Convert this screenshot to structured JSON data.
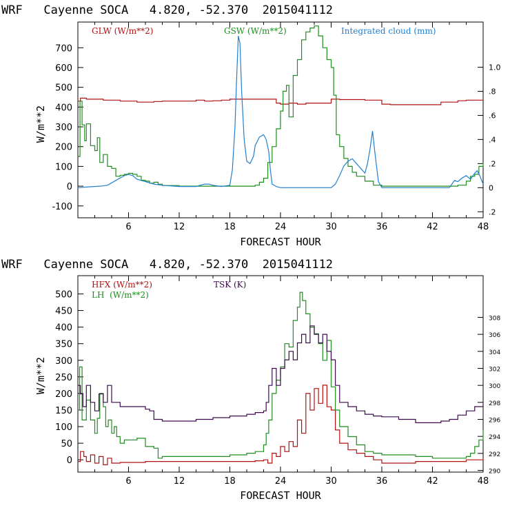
{
  "chart_data": [
    {
      "type": "line",
      "title": "WRF   Cayenne SOCA   4.820, -52.370  2015041112",
      "xlabel": "FORECAST HOUR",
      "ylabel": "W/m**2",
      "xlim": [
        0,
        48
      ],
      "ylim": [
        -160,
        830
      ],
      "y2lim": [
        -0.25,
        1.375
      ],
      "x_ticks": [
        6,
        12,
        18,
        24,
        30,
        36,
        42,
        48
      ],
      "y_ticks": [
        -100,
        0,
        100,
        200,
        300,
        400,
        500,
        600,
        700
      ],
      "y2_ticks": [
        -0.2,
        0,
        0.2,
        0.4,
        0.6,
        0.8,
        1.0
      ],
      "y2_tick_labels": [
        ".2",
        "0",
        ".2",
        ".4",
        ".6",
        ".8",
        "1.0"
      ],
      "legend": [
        {
          "label": "GLW (W/m**2)",
          "color": "#b01010"
        },
        {
          "label": "GSW (W/m**2)",
          "color": "#1e8c1e"
        },
        {
          "label": "Integrated cloud (mm)",
          "color": "#1f7fd0"
        }
      ],
      "series": [
        {
          "name": "GLW",
          "axis": "left",
          "color": "#b01010",
          "step": true,
          "x": [
            0,
            0.3,
            1,
            2,
            3,
            4,
            5,
            6,
            7,
            8,
            9,
            10,
            11,
            12,
            13,
            14,
            15,
            16,
            17,
            18,
            19,
            20,
            21,
            22,
            23,
            23.5,
            24,
            25,
            26,
            27,
            28,
            29,
            30,
            31,
            32,
            33,
            34,
            35,
            36,
            37,
            38,
            39,
            40,
            41,
            42,
            43,
            44,
            45,
            46,
            47,
            48
          ],
          "y": [
            430,
            445,
            440,
            440,
            435,
            435,
            430,
            430,
            425,
            425,
            428,
            430,
            430,
            430,
            430,
            435,
            430,
            432,
            435,
            440,
            440,
            440,
            440,
            440,
            440,
            420,
            415,
            420,
            415,
            420,
            420,
            420,
            440,
            438,
            438,
            438,
            435,
            435,
            415,
            412,
            412,
            412,
            412,
            412,
            412,
            425,
            425,
            432,
            435,
            435,
            435
          ]
        },
        {
          "name": "GSW",
          "axis": "left",
          "color": "#1e8c1e",
          "step": true,
          "x": [
            0,
            0.25,
            0.5,
            0.8,
            1,
            1.5,
            2,
            2.3,
            2.6,
            3,
            3.5,
            4,
            4.5,
            5,
            5.5,
            6,
            6.5,
            7,
            7.5,
            8,
            8.5,
            9,
            9.5,
            10,
            12,
            15,
            18,
            19,
            20,
            21,
            21.5,
            22,
            22.5,
            23,
            23.5,
            24,
            24.3,
            24.7,
            25,
            25.5,
            26,
            26.5,
            27,
            27.5,
            28,
            28.5,
            29,
            29.5,
            30,
            30.3,
            30.6,
            31,
            31.5,
            32,
            32.5,
            33,
            34,
            35,
            36,
            40,
            44,
            45,
            46,
            46.5,
            47,
            47.5,
            48
          ],
          "y": [
            150,
            430,
            310,
            230,
            315,
            205,
            180,
            245,
            120,
            160,
            100,
            90,
            50,
            55,
            60,
            65,
            60,
            50,
            30,
            25,
            15,
            20,
            10,
            3,
            0,
            0,
            0,
            0,
            0,
            5,
            20,
            40,
            120,
            200,
            290,
            380,
            480,
            510,
            350,
            560,
            640,
            740,
            780,
            800,
            810,
            760,
            700,
            640,
            600,
            460,
            260,
            200,
            140,
            100,
            70,
            50,
            25,
            5,
            0,
            0,
            0,
            5,
            25,
            50,
            60,
            100,
            120
          ]
        },
        {
          "name": "Integrated cloud",
          "axis": "right",
          "color": "#1f7fd0",
          "step": false,
          "x": [
            0,
            1,
            2,
            3,
            3.5,
            4,
            4.5,
            5,
            5.5,
            6,
            6.5,
            7,
            8,
            9,
            10,
            12,
            14,
            15,
            15.5,
            16,
            17,
            18,
            18.3,
            18.6,
            18.8,
            19,
            19.2,
            19.4,
            19.7,
            20,
            20.4,
            20.8,
            21,
            21.5,
            22,
            22.3,
            22.6,
            22.8,
            23,
            23.5,
            24,
            26,
            28,
            30,
            30.5,
            31,
            31.5,
            32,
            32.5,
            33,
            33.5,
            34,
            34.3,
            34.6,
            34.9,
            35.2,
            35.6,
            36,
            40,
            44,
            44.3,
            44.6,
            45,
            45.5,
            46,
            46.5,
            47,
            47.3,
            47.6,
            48
          ],
          "y": [
            0,
            0.005,
            0.01,
            0.015,
            0.02,
            0.04,
            0.06,
            0.08,
            0.1,
            0.11,
            0.1,
            0.07,
            0.05,
            0.03,
            0.02,
            0.01,
            0.01,
            0.03,
            0.03,
            0.02,
            0.01,
            0.02,
            0.15,
            0.5,
            0.9,
            1.26,
            1.2,
            0.8,
            0.4,
            0.22,
            0.2,
            0.26,
            0.35,
            0.42,
            0.44,
            0.4,
            0.3,
            0.15,
            0.03,
            0.01,
            0,
            0,
            0,
            0,
            0.03,
            0.1,
            0.18,
            0.22,
            0.24,
            0.2,
            0.16,
            0.12,
            0.2,
            0.32,
            0.47,
            0.28,
            0.05,
            0,
            0,
            0,
            0.03,
            0.06,
            0.05,
            0.08,
            0.1,
            0.07,
            0.12,
            0.14,
            0.1,
            0.03
          ]
        }
      ]
    },
    {
      "type": "line",
      "title": "WRF   Cayenne SOCA   4.820, -52.370  2015041112",
      "xlabel": "FORECAST HOUR",
      "ylabel": "W/m**2",
      "xlim": [
        0,
        48
      ],
      "ylim": [
        -37,
        555
      ],
      "y2lim": [
        289.8,
        312.9
      ],
      "x_ticks": [
        6,
        12,
        18,
        24,
        30,
        36,
        42,
        48
      ],
      "y_ticks": [
        0,
        50,
        100,
        150,
        200,
        250,
        300,
        350,
        400,
        450,
        500
      ],
      "y2_ticks": [
        290,
        292,
        294,
        296,
        298,
        300,
        302,
        304,
        306,
        308
      ],
      "legend": [
        {
          "label": "HFX (W/m**2)",
          "color": "#b01010"
        },
        {
          "label": "LH  (W/m**2)",
          "color": "#1e8c1e"
        },
        {
          "label": "TSK (K)",
          "color": "#3a0a4a"
        }
      ],
      "series": [
        {
          "name": "HFX",
          "axis": "left",
          "color": "#b01010",
          "step": true,
          "x": [
            0,
            0.3,
            0.7,
            1,
            1.5,
            2,
            2.5,
            3,
            3.5,
            4,
            5,
            6,
            8,
            10,
            12,
            15,
            18,
            20,
            21,
            22,
            22.5,
            23,
            23.5,
            24,
            24.5,
            25,
            25.5,
            26,
            26.5,
            27,
            27.5,
            28,
            28.5,
            29,
            29.5,
            30,
            30.5,
            31,
            32,
            33,
            34,
            35,
            36,
            38,
            40,
            42,
            44,
            46,
            47,
            48
          ],
          "y": [
            -5,
            25,
            10,
            -5,
            15,
            -10,
            10,
            -15,
            5,
            -10,
            -8,
            -8,
            -5,
            -5,
            -5,
            -5,
            -5,
            -5,
            -3,
            0,
            -10,
            20,
            10,
            40,
            25,
            55,
            40,
            120,
            80,
            200,
            150,
            215,
            170,
            225,
            160,
            150,
            90,
            50,
            30,
            20,
            10,
            0,
            -10,
            -10,
            -5,
            -5,
            -5,
            0,
            0,
            5
          ]
        },
        {
          "name": "LH",
          "axis": "left",
          "color": "#1e8c1e",
          "step": true,
          "x": [
            0,
            0.2,
            0.5,
            1,
            1.5,
            2,
            2.3,
            2.6,
            3,
            3.3,
            3.6,
            4,
            4.3,
            4.6,
            5,
            5.5,
            6,
            7,
            8,
            9,
            9.5,
            10,
            12,
            15,
            18,
            20,
            21,
            22,
            22.3,
            22.6,
            23,
            23.5,
            24,
            24.5,
            25,
            25.5,
            26,
            26.3,
            26.6,
            27,
            27.5,
            28,
            28.5,
            29,
            29.5,
            30,
            30.5,
            31,
            32,
            33,
            34,
            35,
            36,
            40,
            42,
            44,
            46,
            46.5,
            47,
            47.5,
            48
          ],
          "y": [
            150,
            280,
            120,
            180,
            120,
            80,
            125,
            200,
            160,
            100,
            120,
            80,
            100,
            70,
            50,
            60,
            60,
            65,
            40,
            35,
            5,
            10,
            10,
            10,
            15,
            20,
            25,
            45,
            80,
            120,
            200,
            240,
            280,
            350,
            340,
            420,
            460,
            505,
            480,
            440,
            400,
            380,
            350,
            300,
            360,
            220,
            150,
            100,
            70,
            45,
            25,
            20,
            15,
            10,
            5,
            5,
            10,
            20,
            40,
            60,
            90
          ]
        },
        {
          "name": "TSK",
          "axis": "right",
          "color": "#3a0a4a",
          "step": true,
          "x": [
            0,
            0.3,
            0.6,
            1,
            1.5,
            2,
            2.5,
            3,
            3.5,
            4,
            5,
            6,
            7,
            8,
            8.5,
            9,
            10,
            12,
            14,
            16,
            18,
            20,
            21,
            22,
            22.3,
            22.6,
            23,
            23.5,
            24,
            24.5,
            25,
            25.5,
            26,
            26.5,
            27,
            27.5,
            28,
            28.5,
            29,
            29.5,
            30,
            30.5,
            31,
            32,
            33,
            34,
            35,
            36,
            38,
            40,
            42,
            43,
            44,
            45,
            46,
            47,
            48
          ],
          "y": [
            300,
            299,
            297.5,
            300,
            298,
            297,
            299,
            298,
            300,
            298,
            297.5,
            297.5,
            297.5,
            297.2,
            297,
            296,
            295.8,
            295.8,
            296,
            296.2,
            296.4,
            296.6,
            296.8,
            297,
            298,
            300,
            302,
            300,
            302,
            303,
            304,
            303,
            305,
            306,
            305,
            307,
            306,
            305,
            306,
            304,
            303,
            300,
            298,
            297.5,
            297,
            296.6,
            296.4,
            296.3,
            296,
            295.6,
            295.6,
            295.8,
            296,
            296.5,
            297,
            297.5,
            298
          ]
        }
      ]
    }
  ]
}
